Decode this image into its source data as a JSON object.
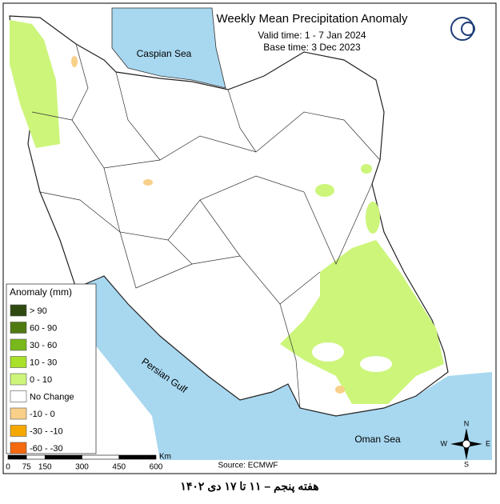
{
  "header": {
    "title": "Weekly Mean Precipitation Anomaly",
    "valid_time": "Valid time: 1 - 7 Jan 2024",
    "base_time": "Base time: 3 Dec 2023"
  },
  "seas": {
    "caspian": "Caspian Sea",
    "gulf": "Persian Gulf",
    "oman": "Oman Sea"
  },
  "legend": {
    "title": "Anomaly (mm)",
    "items": [
      {
        "label": "> 90",
        "color": "#2f4a10"
      },
      {
        "label": "60 - 90",
        "color": "#4f7a12"
      },
      {
        "label": "30 - 60",
        "color": "#78b81a"
      },
      {
        "label": "10 - 30",
        "color": "#a8e02a"
      },
      {
        "label": "0 - 10",
        "color": "#ccf57a"
      },
      {
        "label": "No Change",
        "color": "#ffffff"
      },
      {
        "label": "-10 - 0",
        "color": "#f9d08a"
      },
      {
        "label": "-30 - -10",
        "color": "#f5a800"
      },
      {
        "label": "-60 - -30",
        "color": "#f56a10"
      }
    ]
  },
  "scale_bar": {
    "ticks": [
      0,
      75,
      150,
      300,
      450,
      600
    ],
    "unit": "Km"
  },
  "compass": {
    "n": "N",
    "e": "E",
    "s": "S",
    "w": "W"
  },
  "source": "Source: ECMWF",
  "caption": "هفته پنجم – ۱۱ تا ۱۷ دی ۱۴۰۲"
}
